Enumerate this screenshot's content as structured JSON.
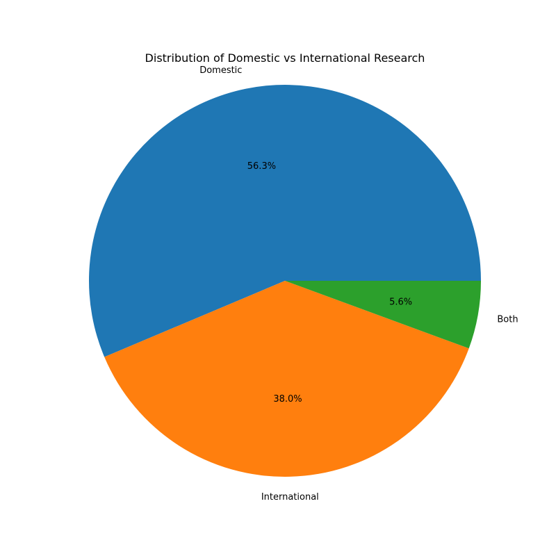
{
  "chart_data": {
    "type": "pie",
    "title": "Distribution of Domestic vs International Research",
    "slices": [
      {
        "label": "Domestic",
        "value": 56.3,
        "pct_label": "56.3%",
        "color": "#1f77b4"
      },
      {
        "label": "International",
        "value": 38.0,
        "pct_label": "38.0%",
        "color": "#ff7f0e"
      },
      {
        "label": "Both",
        "value": 5.6,
        "pct_label": "5.6%",
        "color": "#2ca02c"
      }
    ],
    "start_angle_deg": 0,
    "direction": "counterclockwise"
  }
}
